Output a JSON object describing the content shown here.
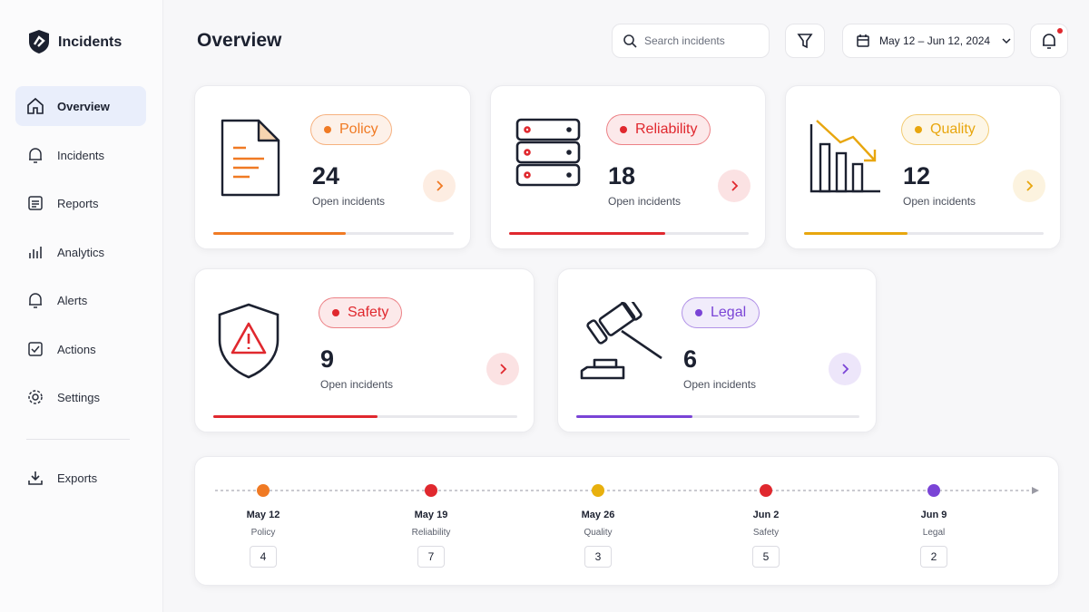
{
  "app": {
    "title": "Incidents"
  },
  "nav": {
    "items": [
      "Overview",
      "Incidents",
      "Reports",
      "Analytics",
      "Alerts",
      "Actions",
      "Settings"
    ],
    "footer": "Exports"
  },
  "header": {
    "title": "Overview",
    "search_placeholder": "Search incidents",
    "date_range": "May 12 – Jun 12, 2024"
  },
  "cards": [
    {
      "category": "Policy",
      "count": 24,
      "caption": "Open incidents",
      "progress": 0.55,
      "color": "#f07a24"
    },
    {
      "category": "Reliability",
      "count": 18,
      "caption": "Open incidents",
      "progress": 0.65,
      "color": "#e0282e"
    },
    {
      "category": "Quality",
      "count": 12,
      "caption": "Open incidents",
      "progress": 0.43,
      "color": "#e8a60e"
    },
    {
      "category": "Safety",
      "count": 9,
      "caption": "Open incidents",
      "progress": 0.54,
      "color": "#e0282e"
    },
    {
      "category": "Legal",
      "count": 6,
      "caption": "Open incidents",
      "progress": 0.41,
      "color": "#7a44d6"
    }
  ],
  "timeline": [
    {
      "date": "May 12",
      "category": "Policy",
      "count": 4,
      "color": "#f07a24"
    },
    {
      "date": "May 19",
      "category": "Reliability",
      "count": 7,
      "color": "#e0282e"
    },
    {
      "date": "May 26",
      "category": "Quality",
      "count": 3,
      "color": "#e8b00e"
    },
    {
      "date": "Jun 2",
      "category": "Safety",
      "count": 5,
      "color": "#e0282e"
    },
    {
      "date": "Jun 9",
      "category": "Legal",
      "count": 2,
      "color": "#7a44d6"
    }
  ]
}
